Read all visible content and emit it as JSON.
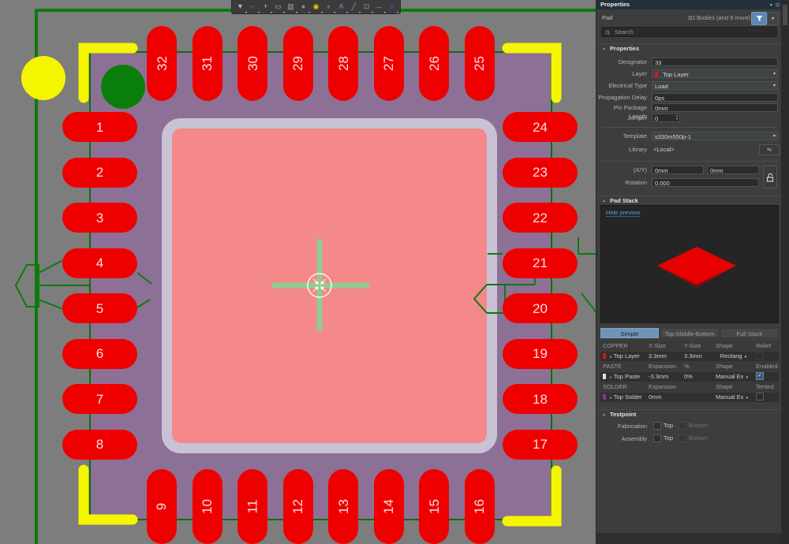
{
  "toolbar": {
    "icons": [
      {
        "name": "filter",
        "glyph": "▼",
        "color": "#a9b7c6"
      },
      {
        "name": "route",
        "glyph": "⌐",
        "color": "#e04040"
      },
      {
        "name": "origin",
        "glyph": "+",
        "color": "#b8b8b8"
      },
      {
        "name": "rectangle",
        "glyph": "▭",
        "color": "#b0b0b0"
      },
      {
        "name": "pad-array",
        "glyph": "▥",
        "color": "#a8a8a8"
      },
      {
        "name": "fill",
        "glyph": "●",
        "color": "#8f8f8f"
      },
      {
        "name": "via",
        "glyph": "◉",
        "color": "#e6d200"
      },
      {
        "name": "pin",
        "glyph": "♁",
        "color": "#e6d200"
      },
      {
        "name": "text",
        "glyph": "A",
        "color": "#5a9ad8"
      },
      {
        "name": "line",
        "glyph": "╱",
        "color": "#8aa0b0"
      },
      {
        "name": "component",
        "glyph": "⊡",
        "color": "#9a9a9a"
      },
      {
        "name": "dimension",
        "glyph": "↔",
        "color": "#9a9a9a"
      },
      {
        "name": "layer-stack",
        "glyph": "■",
        "color": "#2e4e7e"
      }
    ]
  },
  "canvas": {
    "pads": {
      "top": [
        "32",
        "31",
        "30",
        "29",
        "28",
        "27",
        "26",
        "25"
      ],
      "bottom": [
        "9",
        "10",
        "11",
        "12",
        "13",
        "14",
        "15",
        "16"
      ],
      "left": [
        "1",
        "2",
        "3",
        "4",
        "5",
        "6",
        "7",
        "8"
      ],
      "right": [
        "24",
        "23",
        "22",
        "21",
        "20",
        "19",
        "18",
        "17"
      ]
    },
    "colors": {
      "pad_red": "#ee0000",
      "body_purple": "#8d7095",
      "center_pink": "#f5888a",
      "ring_lavender": "#c9c2d4",
      "board_green": "#0b7b0b",
      "trace_green": "#0e7a0e",
      "silk_yellow": "#f5f500",
      "hole_green": "#0a7e0a",
      "crosshair_green": "#90cc90",
      "background_gray": "#7d7d7d"
    }
  },
  "panel": {
    "title": "Properties",
    "window_buttons": [
      {
        "name": "collapse",
        "glyph": "▾"
      },
      {
        "name": "pin",
        "glyph": "⊡"
      },
      {
        "name": "close",
        "glyph": "✕"
      }
    ],
    "object_type": "Pad",
    "scope": "3D Bodies (and 9 more)",
    "search_placeholder": "Search",
    "sections": {
      "properties": "Properties",
      "pad_stack": "Pad Stack",
      "testpoint": "Testpoint"
    },
    "fields": {
      "designator": {
        "label": "Designator",
        "value": "33"
      },
      "layer": {
        "label": "Layer",
        "value": "Top Layer",
        "swatch": "#d81616"
      },
      "electrical_type": {
        "label": "Electrical Type",
        "value": "Load"
      },
      "propagation_delay": {
        "label": "Propagation Delay",
        "value": "0ps"
      },
      "pin_package_length": {
        "label": "Pin Package Length",
        "value": "0mm"
      },
      "jumper": {
        "label": "Jumper",
        "value": "0"
      },
      "template": {
        "label": "Template",
        "value": "s330m550p-1"
      },
      "library": {
        "label": "Library",
        "value": "<Local>"
      },
      "xy": {
        "label": "(X/Y)",
        "x_value": "0mm",
        "y_value": "0mm"
      },
      "rotation": {
        "label": "Rotation",
        "value": "0.000"
      }
    },
    "pad_stack": {
      "hide_preview": "Hide preview",
      "tabs": [
        "Simple",
        "Top-Middle-Bottom",
        "Full Stack"
      ],
      "selected_tab": 0,
      "table": [
        {
          "type": "head",
          "cells": [
            "COPPER",
            "X-Size",
            "Y-Size",
            "Shape",
            "Relief"
          ]
        },
        {
          "type": "data",
          "chip": "#d81616",
          "name": "Top Layer",
          "c2": "3.3mm",
          "c3": "3.3mm",
          "shape": "Rectang",
          "shape_square": true,
          "check": "disabled"
        },
        {
          "type": "head",
          "cells": [
            "PASTE",
            "Expansion",
            "%",
            "Shape",
            "Enabled"
          ]
        },
        {
          "type": "data",
          "chip": "#e0e0e0",
          "name": "Top Paste",
          "c2": "-3.3mm",
          "c3": "0%",
          "shape": "Manual Ex",
          "shape_square": false,
          "check": "checked"
        },
        {
          "type": "head",
          "cells": [
            "SOLDER",
            "Expansion",
            "",
            "Shape",
            "Tented"
          ]
        },
        {
          "type": "data",
          "chip": "#8b2fa8",
          "name": "Top Solder",
          "c2": "0mm",
          "c3": "",
          "shape": "Manual Ex",
          "shape_square": false,
          "check": "unchecked"
        }
      ]
    },
    "testpoint": {
      "fabrication_label": "Fabrication",
      "assembly_label": "Assembly",
      "top_label": "Top",
      "bottom_label": "Bottom"
    }
  }
}
